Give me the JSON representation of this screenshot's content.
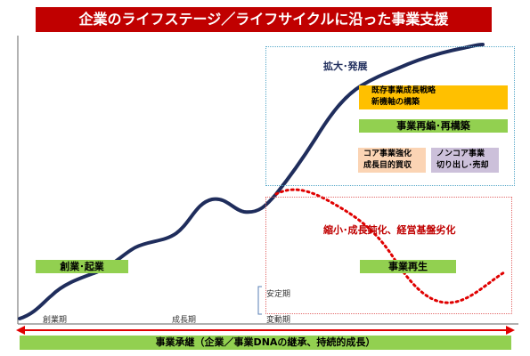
{
  "title": "企業のライフステージ／ライフサイクルに沿った事業支援",
  "expand": {
    "label": "拡大･発展",
    "strategy_line1": "既存事業成長戦略",
    "strategy_line2": "新機軸の構築",
    "restructure": "事業再編･再構築",
    "core_line1": "コア事業強化",
    "core_line2": "成長目的買収",
    "noncore_line1": "ノンコア事業",
    "noncore_line2": "切り出し･売却"
  },
  "shrink": {
    "label": "縮小･成長鈍化、経営基盤劣化",
    "revival": "事業再生"
  },
  "startup": "創業･起業",
  "periods": {
    "founding": "創業期",
    "growth": "成長期",
    "stable": "安定期",
    "volatile": "変動期"
  },
  "bottom_bar": "事業承継（企業／事業DNAの継承、持続的成長）",
  "colors": {
    "title_bg": "#c00000",
    "curve": "#1f2d5c",
    "decline": "#e00000",
    "green": "#92d050",
    "orange": "#ffc000",
    "peach": "#fbd4b4",
    "lavender": "#ccc0da"
  }
}
